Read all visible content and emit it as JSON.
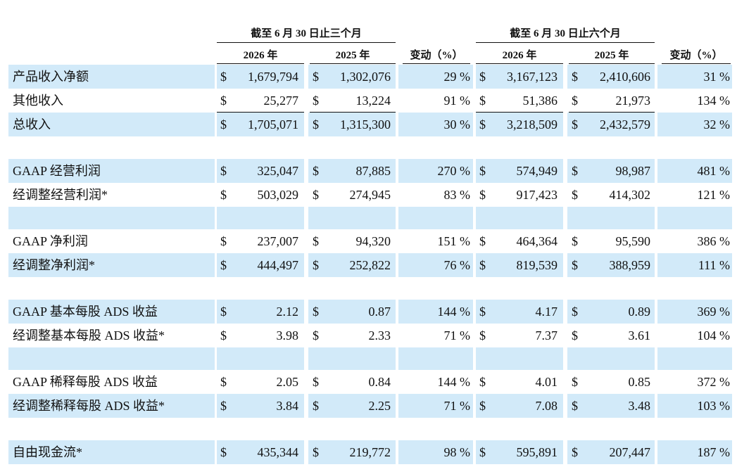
{
  "header": {
    "group_titles": [
      "截至 6 月 30 日止三个月",
      "截至 6 月 30 日止六个月"
    ],
    "columns": [
      "2026 年",
      "2025 年",
      "变动（%）",
      "2026 年",
      "2025 年",
      "变动（%）"
    ]
  },
  "sections": [
    {
      "rows": [
        {
          "label": "产品收入净额",
          "cells": [
            "$",
            "1,679,794",
            "$",
            "1,302,076",
            "29 %",
            "$",
            "3,167,123",
            "$",
            "2,410,606",
            "31 %"
          ]
        },
        {
          "label": "其他收入",
          "cells": [
            "$",
            "25,277",
            "$",
            "13,224",
            "91 %",
            "$",
            "51,386",
            "$",
            "21,973",
            "134 %"
          ]
        },
        {
          "label": "总收入",
          "cells": [
            "$",
            "1,705,071",
            "$",
            "1,315,300",
            "30 %",
            "$",
            "3,218,509",
            "$",
            "2,432,579",
            "32 %"
          ]
        }
      ]
    },
    {
      "rows": [
        {
          "label": "GAAP 经营利润",
          "cells": [
            "$",
            "325,047",
            "$",
            "87,885",
            "270 %",
            "$",
            "574,949",
            "$",
            "98,987",
            "481 %"
          ]
        },
        {
          "label": "经调整经营利润*",
          "cells": [
            "$",
            "503,029",
            "$",
            "274,945",
            "83 %",
            "$",
            "917,423",
            "$",
            "414,302",
            "121 %"
          ]
        }
      ]
    },
    {
      "rows": [
        {
          "label": "GAAP 净利润",
          "cells": [
            "$",
            "237,007",
            "$",
            "94,320",
            "151 %",
            "$",
            "464,364",
            "$",
            "95,590",
            "386 %"
          ]
        },
        {
          "label": "经调整净利润*",
          "cells": [
            "$",
            "444,497",
            "$",
            "252,822",
            "76 %",
            "$",
            "819,539",
            "$",
            "388,959",
            "111 %"
          ]
        }
      ]
    },
    {
      "rows": [
        {
          "label": "GAAP 基本每股 ADS 收益",
          "cells": [
            "$",
            "2.12",
            "$",
            "0.87",
            "144 %",
            "$",
            "4.17",
            "$",
            "0.89",
            "369 %"
          ]
        },
        {
          "label": "经调整基本每股 ADS 收益*",
          "cells": [
            "$",
            "3.98",
            "$",
            "2.33",
            "71 %",
            "$",
            "7.37",
            "$",
            "3.61",
            "104 %"
          ]
        }
      ]
    },
    {
      "rows": [
        {
          "label": "GAAP 稀释每股 ADS 收益",
          "cells": [
            "$",
            "2.05",
            "$",
            "0.84",
            "144 %",
            "$",
            "4.01",
            "$",
            "0.85",
            "372 %"
          ]
        },
        {
          "label": "经调整稀释每股 ADS 收益*",
          "cells": [
            "$",
            "3.84",
            "$",
            "2.25",
            "71 %",
            "$",
            "7.08",
            "$",
            "3.48",
            "103 %"
          ]
        }
      ]
    },
    {
      "rows": [
        {
          "label": "自由现金流*",
          "cells": [
            "$",
            "435,344",
            "$",
            "219,772",
            "98 %",
            "$",
            "595,891",
            "$",
            "207,447",
            "187 %"
          ]
        }
      ]
    }
  ]
}
